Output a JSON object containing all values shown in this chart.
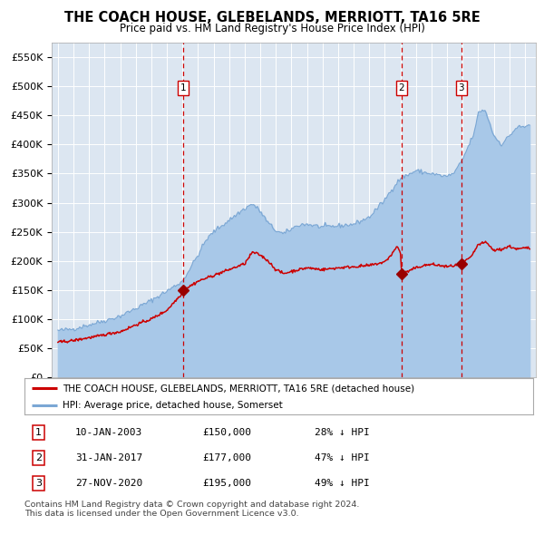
{
  "title": "THE COACH HOUSE, GLEBELANDS, MERRIOTT, TA16 5RE",
  "subtitle": "Price paid vs. HM Land Registry's House Price Index (HPI)",
  "title_fontsize": 10.5,
  "subtitle_fontsize": 8.5,
  "background_color": "#ffffff",
  "plot_bg_color": "#dce6f1",
  "grid_color": "#ffffff",
  "ylim": [
    0,
    575000
  ],
  "yticks": [
    0,
    50000,
    100000,
    150000,
    200000,
    250000,
    300000,
    350000,
    400000,
    450000,
    500000,
    550000
  ],
  "xlim_start": 1994.6,
  "xlim_end": 2025.7,
  "sale_year_floats": [
    2003.04,
    2017.08,
    2020.92
  ],
  "sale_prices": [
    150000,
    177000,
    195000
  ],
  "sale_labels": [
    "1",
    "2",
    "3"
  ],
  "legend_property": "THE COACH HOUSE, GLEBELANDS, MERRIOTT, TA16 5RE (detached house)",
  "legend_hpi": "HPI: Average price, detached house, Somerset",
  "table_entries": [
    {
      "label": "1",
      "date": "10-JAN-2003",
      "price": "£150,000",
      "pct": "28% ↓ HPI"
    },
    {
      "label": "2",
      "date": "31-JAN-2017",
      "price": "£177,000",
      "pct": "47% ↓ HPI"
    },
    {
      "label": "3",
      "date": "27-NOV-2020",
      "price": "£195,000",
      "pct": "49% ↓ HPI"
    }
  ],
  "footnote": "Contains HM Land Registry data © Crown copyright and database right 2024.\nThis data is licensed under the Open Government Licence v3.0.",
  "hpi_color": "#a8c8e8",
  "hpi_line_color": "#7ba7d4",
  "price_color": "#cc0000",
  "dashed_line_color": "#cc0000",
  "marker_color": "#990000",
  "hpi_anchors_x": [
    1995.0,
    1996.0,
    1997.0,
    1998.0,
    1999.0,
    2000.0,
    2001.0,
    2002.0,
    2003.0,
    2004.0,
    2004.5,
    2005.0,
    2006.0,
    2007.0,
    2007.5,
    2008.0,
    2008.5,
    2009.0,
    2009.5,
    2010.0,
    2010.5,
    2011.0,
    2012.0,
    2013.0,
    2014.0,
    2015.0,
    2016.0,
    2016.5,
    2017.0,
    2017.5,
    2018.0,
    2018.5,
    2019.0,
    2019.5,
    2020.0,
    2020.5,
    2021.0,
    2021.5,
    2021.8,
    2022.0,
    2022.3,
    2022.5,
    2023.0,
    2023.5,
    2024.0,
    2024.5,
    2025.0,
    2025.3
  ],
  "hpi_anchors_y": [
    80000,
    83000,
    90000,
    97000,
    105000,
    118000,
    132000,
    148000,
    165000,
    210000,
    235000,
    250000,
    270000,
    290000,
    298000,
    285000,
    265000,
    252000,
    246000,
    255000,
    262000,
    263000,
    258000,
    260000,
    263000,
    275000,
    305000,
    325000,
    342000,
    348000,
    355000,
    352000,
    350000,
    347000,
    345000,
    352000,
    375000,
    405000,
    425000,
    455000,
    460000,
    455000,
    415000,
    400000,
    415000,
    430000,
    430000,
    435000
  ],
  "red_anchors_x": [
    1995.0,
    1996.0,
    1997.0,
    1997.5,
    1998.0,
    1998.5,
    1999.0,
    2000.0,
    2001.0,
    2002.0,
    2002.5,
    2003.0,
    2003.08,
    2004.0,
    2005.0,
    2006.0,
    2007.0,
    2007.5,
    2008.0,
    2008.5,
    2009.0,
    2009.5,
    2010.0,
    2011.0,
    2012.0,
    2013.0,
    2014.0,
    2015.0,
    2016.0,
    2016.4,
    2016.8,
    2017.0,
    2017.08,
    2017.5,
    2018.0,
    2018.5,
    2019.0,
    2019.5,
    2020.0,
    2020.5,
    2020.92,
    2021.0,
    2021.5,
    2022.0,
    2022.5,
    2023.0,
    2023.5,
    2024.0,
    2024.5,
    2025.0,
    2025.3
  ],
  "red_anchors_y": [
    60000,
    63000,
    68000,
    70000,
    73000,
    76000,
    78000,
    90000,
    100000,
    115000,
    130000,
    145000,
    150000,
    165000,
    175000,
    185000,
    195000,
    215000,
    210000,
    200000,
    185000,
    178000,
    182000,
    188000,
    185000,
    188000,
    190000,
    192000,
    198000,
    210000,
    225000,
    215000,
    177000,
    182000,
    188000,
    192000,
    194000,
    192000,
    190000,
    192000,
    195000,
    198000,
    205000,
    228000,
    232000,
    218000,
    220000,
    225000,
    220000,
    222000,
    222000
  ]
}
